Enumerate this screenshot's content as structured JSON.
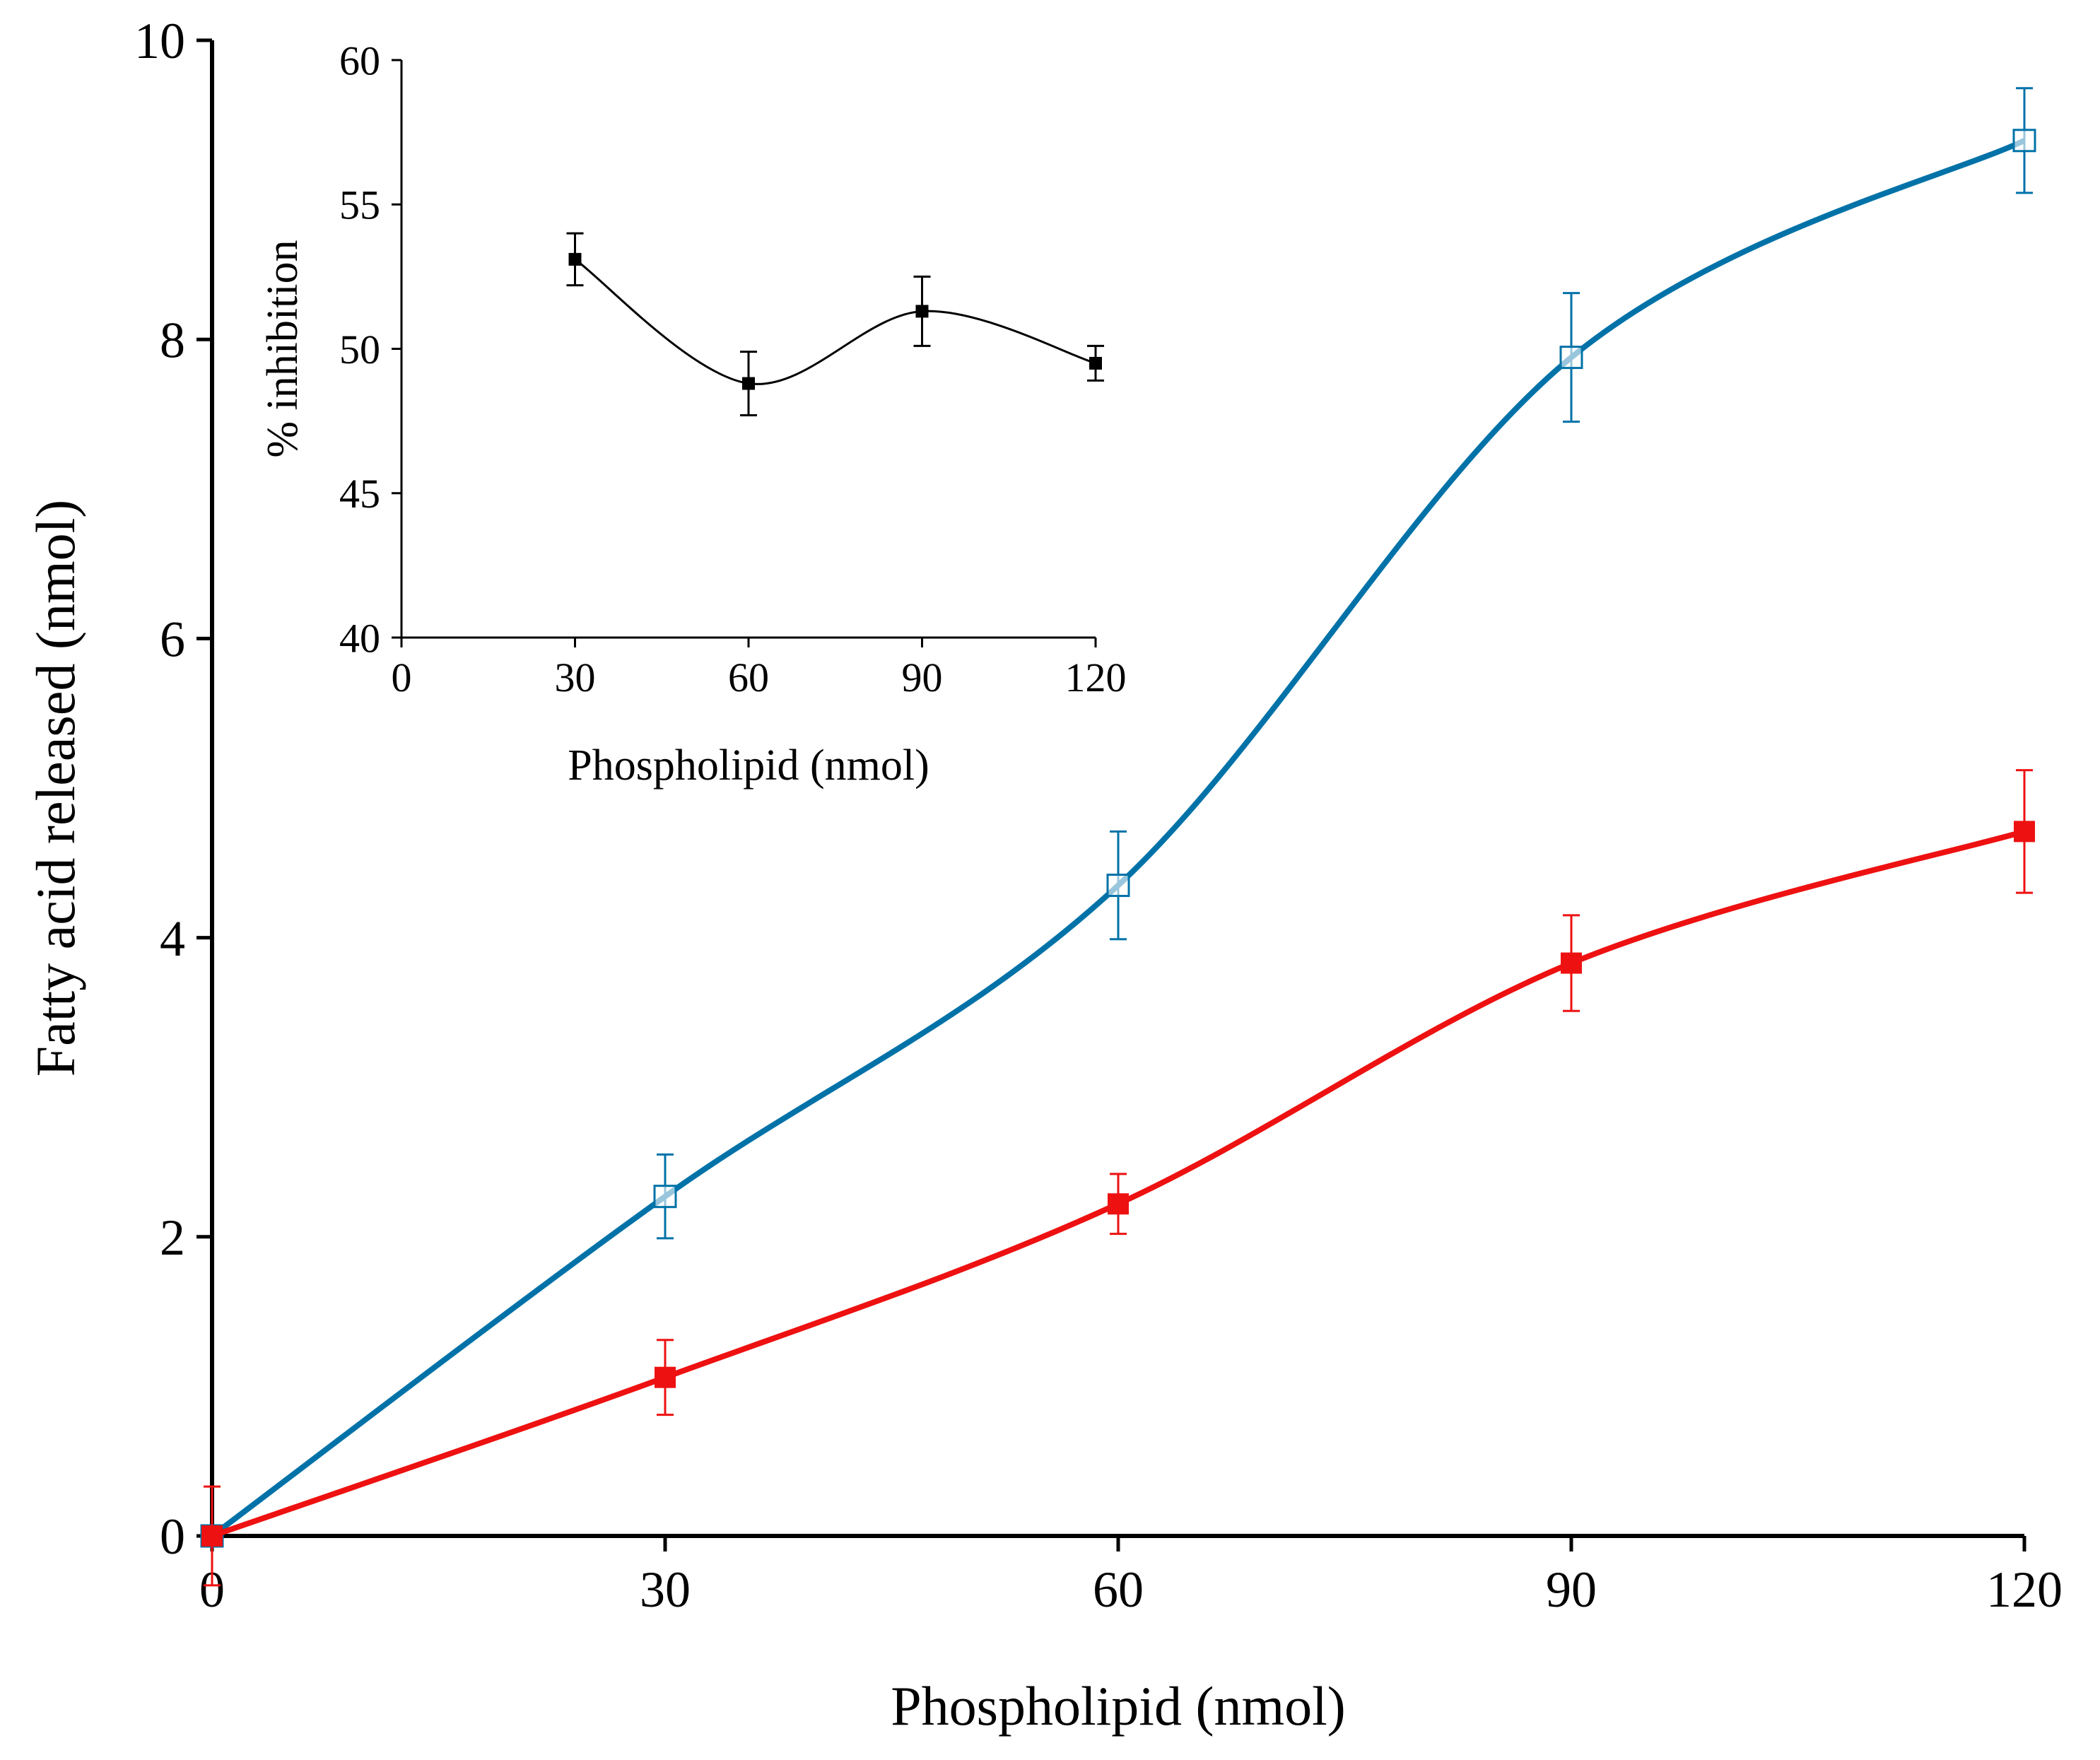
{
  "chart_data": [
    {
      "type": "line",
      "xlabel": "Phospholipid  (nmol)",
      "ylabel": "Fatty acid released (nmol)",
      "xlim": [
        0,
        120
      ],
      "ylim": [
        0,
        10
      ],
      "xticks": [
        0,
        30,
        60,
        90,
        120
      ],
      "yticks": [
        0,
        2,
        4,
        6,
        8,
        10
      ],
      "x": [
        0,
        30,
        60,
        90,
        120
      ],
      "series": [
        {
          "color": "#0072a8",
          "marker": "open-square",
          "y": [
            0,
            2.27,
            4.35,
            7.88,
            9.33
          ],
          "error": [
            0,
            0.28,
            0.36,
            0.43,
            0.35
          ]
        },
        {
          "color": "#ee1111",
          "marker": "filled-square",
          "y": [
            0,
            1.06,
            2.22,
            3.83,
            4.71
          ],
          "error": [
            0.33,
            0.25,
            0.2,
            0.32,
            0.41
          ]
        }
      ],
      "grid": false
    },
    {
      "type": "line",
      "xlabel": "Phospholipid  (nmol)",
      "ylabel": "% inhibition",
      "xlim": [
        0,
        120
      ],
      "ylim": [
        40,
        60
      ],
      "xticks": [
        0,
        30,
        60,
        90,
        120
      ],
      "yticks": [
        40,
        45,
        50,
        55,
        60
      ],
      "x": [
        30,
        60,
        90,
        120
      ],
      "series": [
        {
          "color": "#000000",
          "marker": "filled-square",
          "y": [
            53.1,
            48.8,
            51.3,
            49.5
          ],
          "error": [
            0.9,
            1.1,
            1.2,
            0.6
          ]
        }
      ],
      "grid": false
    }
  ]
}
